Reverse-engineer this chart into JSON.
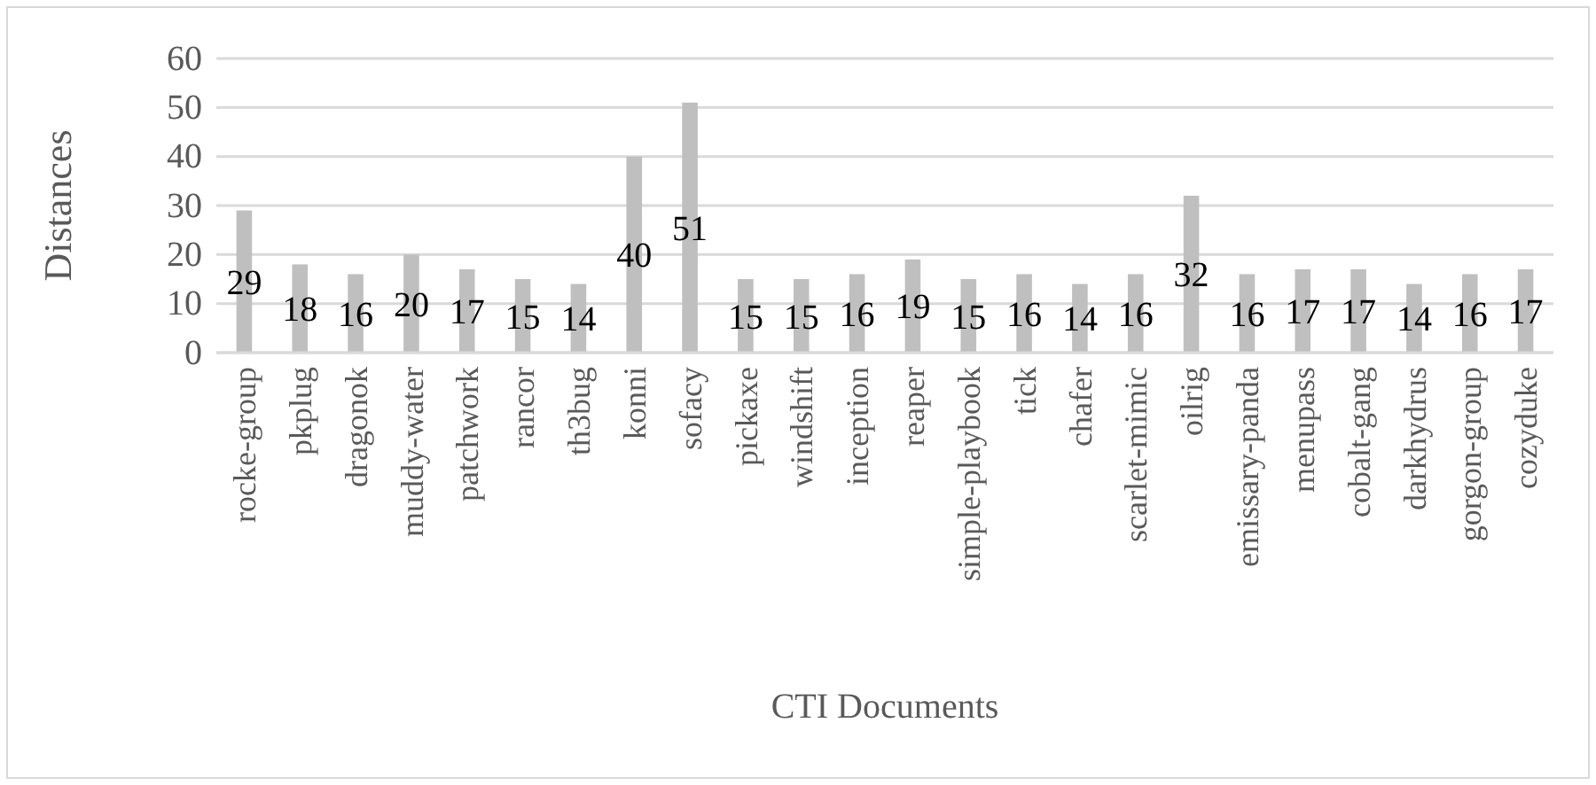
{
  "chart_data": {
    "type": "bar",
    "xlabel": "CTI Documents",
    "ylabel": "Distances",
    "categories": [
      "rocke-group",
      "pkplug",
      "dragonok",
      "muddy-water",
      "patchwork",
      "rancor",
      "th3bug",
      "konni",
      "sofacy",
      "pickaxe",
      "windshift",
      "inception",
      "reaper",
      "simple-playbook",
      "tick",
      "chafer",
      "scarlet-mimic",
      "oilrig",
      "emissary-panda",
      "menupass",
      "cobalt-gang",
      "darkhydrus",
      "gorgon-group",
      "cozyduke"
    ],
    "values": [
      29,
      18,
      16,
      20,
      17,
      15,
      14,
      40,
      51,
      15,
      15,
      16,
      19,
      15,
      16,
      14,
      16,
      32,
      16,
      17,
      17,
      14,
      16,
      17
    ],
    "color": "#bfbfbf",
    "ylim": [
      0,
      60
    ],
    "yticks": [
      0,
      10,
      20,
      30,
      40,
      50,
      60
    ],
    "grid": "y",
    "data_labels": true
  }
}
